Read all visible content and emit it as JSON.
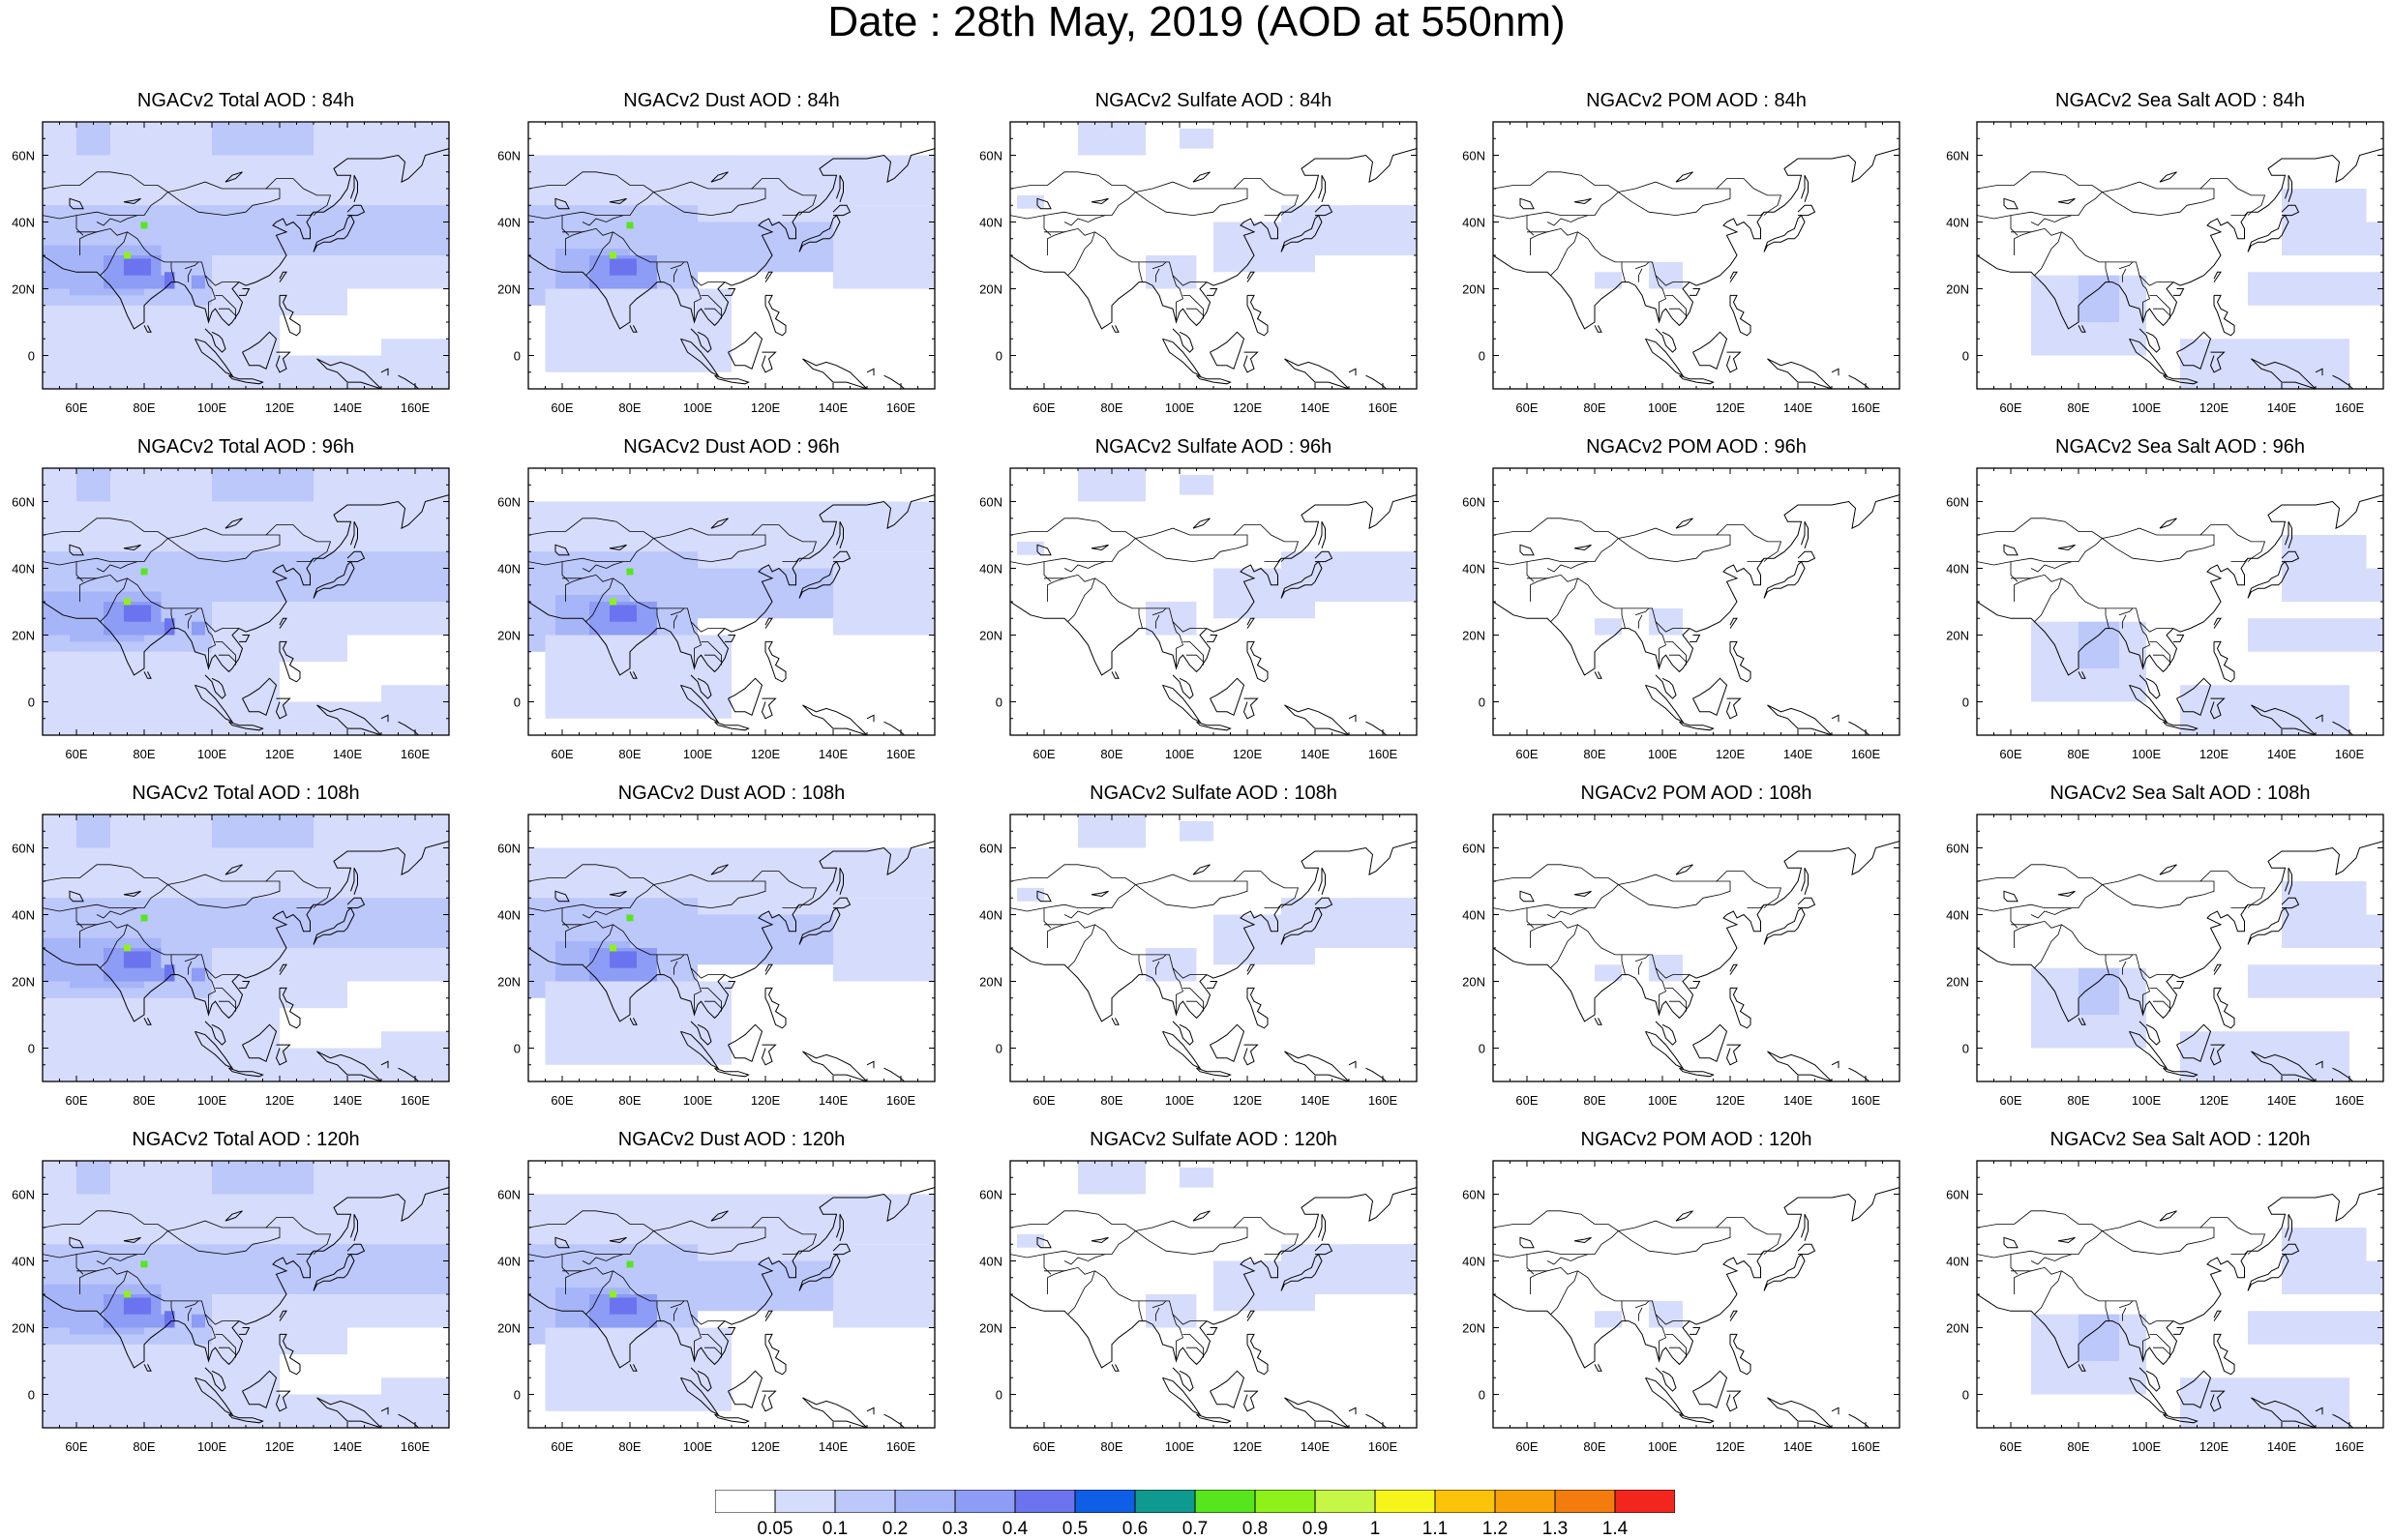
{
  "title": "Date : 28th May, 2019 (AOD at 550nm)",
  "panels": [
    [
      "NGACv2 Total AOD : 84h",
      "NGACv2 Dust AOD : 84h",
      "NGACv2 Sulfate AOD : 84h",
      "NGACv2 POM AOD : 84h",
      "NGACv2 Sea Salt AOD : 84h"
    ],
    [
      "NGACv2 Total AOD : 96h",
      "NGACv2 Dust AOD : 96h",
      "NGACv2 Sulfate AOD : 96h",
      "NGACv2 POM AOD : 96h",
      "NGACv2 Sea Salt AOD : 96h"
    ],
    [
      "NGACv2 Total AOD : 108h",
      "NGACv2 Dust AOD : 108h",
      "NGACv2 Sulfate AOD : 108h",
      "NGACv2 POM AOD : 108h",
      "NGACv2 Sea Salt AOD : 108h"
    ],
    [
      "NGACv2 Total AOD : 120h",
      "NGACv2 Dust AOD : 120h",
      "NGACv2 Sulfate AOD : 120h",
      "NGACv2 POM AOD : 120h",
      "NGACv2 Sea Salt  AOD : 120h"
    ]
  ],
  "x_ticks": [
    "60E",
    "80E",
    "100E",
    "120E",
    "140E",
    "160E"
  ],
  "y_ticks": [
    "60N",
    "40N",
    "20N",
    "0"
  ],
  "colorbar": {
    "labels": [
      "0.05",
      "0.1",
      "0.2",
      "0.3",
      "0.4",
      "0.5",
      "0.6",
      "0.7",
      "0.8",
      "0.9",
      "1",
      "1.1",
      "1.2",
      "1.3",
      "1.4"
    ],
    "colors": [
      "#ffffff",
      "#d6dcfb",
      "#bcc7fa",
      "#a6b5f8",
      "#8d9cf4",
      "#6b74ee",
      "#0f5fe6",
      "#0e9a8e",
      "#57e61e",
      "#8ef21a",
      "#c6f646",
      "#f5f51c",
      "#fbc30a",
      "#f8a007",
      "#f47b0d",
      "#f3261f"
    ]
  }
}
